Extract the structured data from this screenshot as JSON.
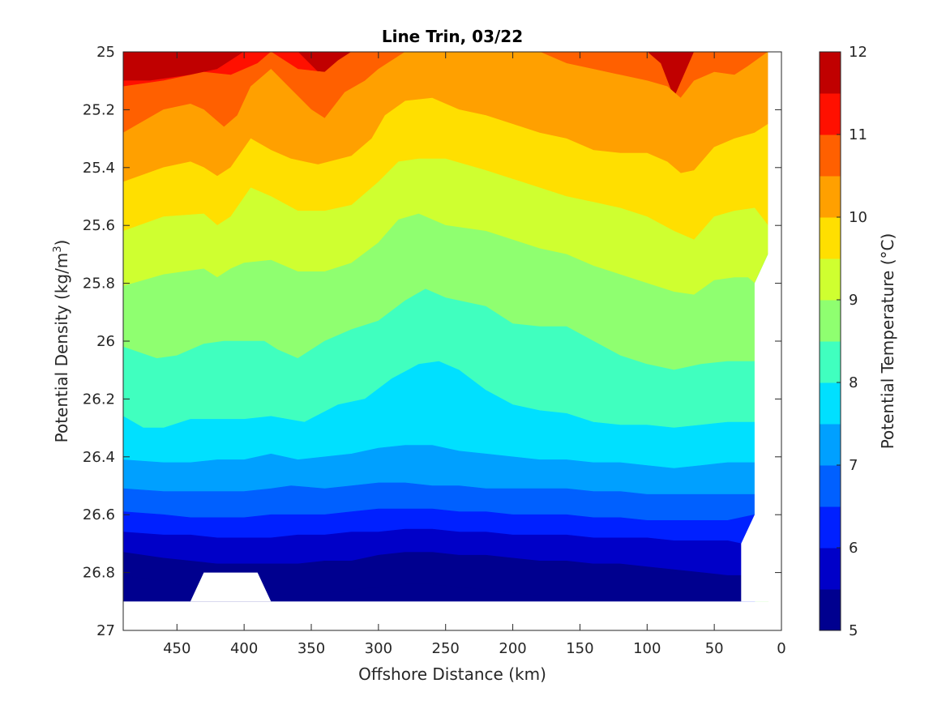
{
  "chart_data": {
    "type": "contour",
    "title": "Line Trin, 03/22",
    "xlabel": "Offshore Distance (km)",
    "ylabel_main": "Potential Density (kg/m",
    "ylabel_sup": "3",
    "ylabel_close": ")",
    "xlim": [
      490,
      0
    ],
    "x_reversed": true,
    "ylim": [
      25,
      27
    ],
    "y_reversed": true,
    "xticks": [
      450,
      400,
      350,
      300,
      250,
      200,
      150,
      100,
      50,
      0
    ],
    "xtick_labels": [
      "450",
      "400",
      "350",
      "300",
      "250",
      "200",
      "150",
      "100",
      "50",
      "0"
    ],
    "yticks": [
      25,
      25.2,
      25.4,
      25.6,
      25.8,
      26,
      26.2,
      26.4,
      26.6,
      26.8,
      27
    ],
    "ytick_labels": [
      "25",
      "25.2",
      "25.4",
      "25.6",
      "25.8",
      "26",
      "26.2",
      "26.4",
      "26.6",
      "26.8",
      "27"
    ],
    "grid": false,
    "colorbar": {
      "label": "Potential Temperature (°C)",
      "range": [
        5,
        12
      ],
      "ticks": [
        5,
        6,
        7,
        8,
        9,
        10,
        11,
        12
      ],
      "tick_labels": [
        "5",
        "6",
        "7",
        "8",
        "9",
        "10",
        "11",
        "12"
      ],
      "levels": [
        5,
        5.5,
        6,
        6.5,
        7,
        7.5,
        8,
        8.5,
        9,
        9.5,
        10,
        10.5,
        11,
        11.5,
        12
      ],
      "colors": [
        "#00008f",
        "#0000c8",
        "#0020ff",
        "#0060ff",
        "#00a0ff",
        "#00e0ff",
        "#40ffbf",
        "#8fff70",
        "#cfff30",
        "#ffdf00",
        "#ffa000",
        "#ff6000",
        "#ff1000",
        "#c00000"
      ]
    },
    "data_extent": {
      "x_max": 490,
      "x_min_top": 10,
      "x_min_bottom": 30,
      "bottom_sigma": 26.9
    },
    "isotherms": [
      {
        "level": 11.5,
        "x": [
          490,
          470,
          440,
          420,
          400,
          380,
          360,
          345,
          330,
          310,
          300
        ],
        "sigma": [
          25.1,
          25.1,
          25.08,
          25.06,
          25.0,
          25.0,
          25.0,
          25.07,
          25.07,
          25.0,
          25.0
        ]
      },
      {
        "level": 11,
        "x": [
          490,
          460,
          430,
          410,
          390,
          380,
          360,
          340,
          330,
          320,
          300,
          290,
          280,
          260,
          240,
          220,
          200,
          180,
          150,
          120,
          100,
          90,
          80,
          65,
          50,
          25,
          10
        ],
        "sigma": [
          25.12,
          25.1,
          25.07,
          25.08,
          25.04,
          25.0,
          25.06,
          25.07,
          25.03,
          25.0,
          25.0,
          25.0,
          25.0,
          25.0,
          25.0,
          25.0,
          25.0,
          25.0,
          25.0,
          25.0,
          25.0,
          25.04,
          25.16,
          25.0,
          25.0,
          25.0,
          25.0
        ]
      },
      {
        "level": 10.5,
        "x": [
          490,
          460,
          440,
          430,
          415,
          405,
          395,
          380,
          365,
          350,
          340,
          325,
          310,
          300,
          280,
          260,
          240,
          220,
          200,
          180,
          160,
          140,
          120,
          100,
          85,
          75,
          65,
          50,
          35,
          25,
          10
        ],
        "sigma": [
          25.28,
          25.2,
          25.18,
          25.2,
          25.26,
          25.22,
          25.12,
          25.06,
          25.13,
          25.2,
          25.23,
          25.14,
          25.1,
          25.06,
          25.0,
          24.98,
          25.0,
          25.0,
          25.0,
          25.0,
          25.04,
          25.06,
          25.08,
          25.1,
          25.12,
          25.16,
          25.1,
          25.07,
          25.08,
          25.05,
          25.0
        ]
      },
      {
        "level": 10,
        "x": [
          490,
          460,
          440,
          430,
          420,
          410,
          395,
          380,
          365,
          345,
          320,
          305,
          295,
          280,
          260,
          240,
          220,
          200,
          180,
          160,
          140,
          120,
          100,
          85,
          75,
          65,
          50,
          35,
          20,
          10
        ],
        "sigma": [
          25.45,
          25.4,
          25.38,
          25.4,
          25.43,
          25.4,
          25.3,
          25.34,
          25.37,
          25.39,
          25.36,
          25.3,
          25.22,
          25.17,
          25.16,
          25.2,
          25.22,
          25.25,
          25.28,
          25.3,
          25.34,
          25.35,
          25.35,
          25.38,
          25.42,
          25.41,
          25.33,
          25.3,
          25.28,
          25.25
        ]
      },
      {
        "level": 9.5,
        "x": [
          490,
          460,
          430,
          420,
          410,
          395,
          380,
          360,
          340,
          320,
          300,
          285,
          270,
          250,
          220,
          200,
          180,
          160,
          140,
          120,
          100,
          80,
          65,
          50,
          35,
          20,
          10
        ],
        "sigma": [
          25.62,
          25.57,
          25.56,
          25.6,
          25.57,
          25.47,
          25.5,
          25.55,
          25.55,
          25.53,
          25.45,
          25.38,
          25.37,
          25.37,
          25.41,
          25.44,
          25.47,
          25.5,
          25.52,
          25.54,
          25.57,
          25.62,
          25.65,
          25.57,
          25.55,
          25.54,
          25.6
        ]
      },
      {
        "level": 9,
        "x": [
          490,
          460,
          430,
          420,
          410,
          400,
          380,
          360,
          340,
          320,
          300,
          285,
          270,
          250,
          220,
          200,
          180,
          160,
          140,
          120,
          100,
          80,
          65,
          50,
          35,
          25,
          20,
          10
        ],
        "sigma": [
          25.81,
          25.77,
          25.75,
          25.78,
          25.75,
          25.73,
          25.72,
          25.76,
          25.76,
          25.73,
          25.66,
          25.58,
          25.56,
          25.6,
          25.62,
          25.65,
          25.68,
          25.7,
          25.74,
          25.77,
          25.8,
          25.83,
          25.84,
          25.79,
          25.78,
          25.78,
          25.8,
          25.7
        ]
      },
      {
        "level": 8.5,
        "x": [
          490,
          465,
          450,
          430,
          415,
          400,
          385,
          375,
          360,
          340,
          320,
          300,
          280,
          265,
          250,
          220,
          200,
          180,
          160,
          140,
          120,
          100,
          80,
          60,
          40,
          20
        ],
        "sigma": [
          26.02,
          26.06,
          26.05,
          26.01,
          26.0,
          26.0,
          26.0,
          26.03,
          26.06,
          26.0,
          25.96,
          25.93,
          25.86,
          25.82,
          25.85,
          25.88,
          25.94,
          25.95,
          25.95,
          26.0,
          26.05,
          26.08,
          26.1,
          26.08,
          26.07,
          26.07
        ]
      },
      {
        "level": 8,
        "x": [
          490,
          475,
          460,
          440,
          420,
          400,
          380,
          355,
          330,
          310,
          290,
          270,
          255,
          240,
          220,
          200,
          180,
          160,
          140,
          120,
          100,
          80,
          60,
          40,
          20
        ],
        "sigma": [
          26.26,
          26.3,
          26.3,
          26.27,
          26.27,
          26.27,
          26.26,
          26.28,
          26.22,
          26.2,
          26.13,
          26.08,
          26.07,
          26.1,
          26.17,
          26.22,
          26.24,
          26.25,
          26.28,
          26.29,
          26.29,
          26.3,
          26.29,
          26.28,
          26.28
        ]
      },
      {
        "level": 7.5,
        "x": [
          490,
          460,
          440,
          420,
          400,
          380,
          360,
          340,
          320,
          300,
          280,
          260,
          240,
          220,
          200,
          180,
          160,
          140,
          120,
          100,
          80,
          60,
          40,
          20
        ],
        "sigma": [
          26.41,
          26.42,
          26.42,
          26.41,
          26.41,
          26.39,
          26.41,
          26.4,
          26.39,
          26.37,
          26.36,
          26.36,
          26.38,
          26.39,
          26.4,
          26.41,
          26.41,
          26.42,
          26.42,
          26.43,
          26.44,
          26.43,
          26.42,
          26.42
        ]
      },
      {
        "level": 7,
        "x": [
          490,
          460,
          440,
          420,
          400,
          380,
          365,
          340,
          320,
          300,
          280,
          260,
          240,
          220,
          200,
          180,
          160,
          140,
          120,
          100,
          80,
          60,
          40,
          20
        ],
        "sigma": [
          26.51,
          26.52,
          26.52,
          26.52,
          26.52,
          26.51,
          26.5,
          26.51,
          26.5,
          26.49,
          26.49,
          26.5,
          26.5,
          26.51,
          26.51,
          26.51,
          26.51,
          26.52,
          26.52,
          26.53,
          26.53,
          26.53,
          26.53,
          26.53
        ]
      },
      {
        "level": 6.5,
        "x": [
          490,
          460,
          440,
          420,
          400,
          380,
          360,
          340,
          320,
          300,
          280,
          260,
          240,
          220,
          200,
          180,
          160,
          140,
          120,
          100,
          80,
          60,
          40,
          20
        ],
        "sigma": [
          26.59,
          26.6,
          26.61,
          26.61,
          26.61,
          26.6,
          26.6,
          26.6,
          26.59,
          26.58,
          26.58,
          26.58,
          26.59,
          26.59,
          26.6,
          26.6,
          26.6,
          26.61,
          26.61,
          26.62,
          26.62,
          26.62,
          26.62,
          26.6
        ]
      },
      {
        "level": 6,
        "x": [
          490,
          460,
          440,
          420,
          400,
          380,
          360,
          340,
          320,
          300,
          280,
          260,
          240,
          220,
          200,
          180,
          160,
          140,
          120,
          100,
          80,
          60,
          40,
          30
        ],
        "sigma": [
          26.66,
          26.67,
          26.67,
          26.68,
          26.68,
          26.68,
          26.67,
          26.67,
          26.66,
          26.66,
          26.65,
          26.65,
          26.66,
          26.66,
          26.67,
          26.67,
          26.67,
          26.68,
          26.68,
          26.68,
          26.69,
          26.69,
          26.69,
          26.7
        ]
      },
      {
        "level": 5.5,
        "x": [
          490,
          460,
          440,
          420,
          400,
          380,
          360,
          340,
          320,
          300,
          280,
          260,
          240,
          220,
          200,
          180,
          160,
          140,
          120,
          100,
          80,
          60,
          40,
          30
        ],
        "sigma": [
          26.73,
          26.75,
          26.76,
          26.77,
          26.77,
          26.77,
          26.77,
          26.76,
          26.76,
          26.74,
          26.73,
          26.73,
          26.74,
          26.74,
          26.75,
          26.76,
          26.76,
          26.77,
          26.77,
          26.78,
          26.79,
          26.8,
          26.81,
          26.81
        ]
      },
      {
        "level": 5,
        "x": [
          490,
          460,
          440,
          420,
          400,
          380,
          360,
          340,
          320,
          300,
          280,
          260,
          240,
          220,
          200,
          180,
          160,
          140,
          120,
          100,
          80,
          60,
          40,
          30
        ],
        "sigma": [
          26.81,
          26.83,
          26.85,
          26.86,
          26.86,
          26.87,
          26.88,
          26.87,
          26.86,
          26.85,
          26.84,
          26.84,
          26.85,
          26.86,
          26.87,
          26.88,
          26.88,
          26.89,
          26.9,
          26.9,
          26.9,
          26.9,
          26.9,
          26.9
        ]
      }
    ],
    "masked_region": {
      "x": [
        440,
        430,
        390,
        380
      ],
      "sigma": [
        26.9,
        26.8,
        26.8,
        26.9
      ]
    }
  }
}
